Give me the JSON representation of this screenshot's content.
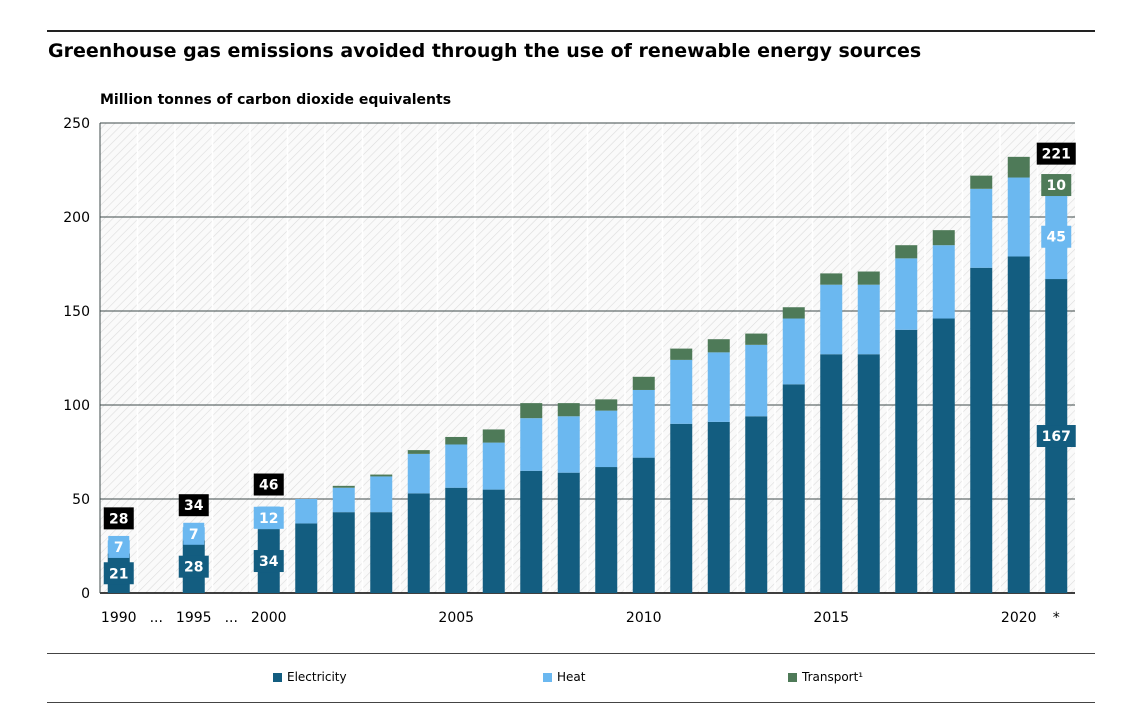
{
  "title": "Greenhouse gas emissions avoided through the use of renewable energy sources",
  "unit_label": "Million tonnes of carbon dioxide equivalents",
  "colors": {
    "electricity": "#135d80",
    "heat": "#6bb8f0",
    "transport": "#4e7a58",
    "total_box": "#000000"
  },
  "legend": [
    {
      "label": "Electricity",
      "color": "#135d80"
    },
    {
      "label": "Heat",
      "color": "#6bb8f0"
    },
    {
      "label": "Transport¹",
      "color": "#4e7a58"
    }
  ],
  "chart_data": {
    "type": "bar",
    "stacked": true,
    "ylim": [
      0,
      250
    ],
    "y_ticks": [
      0,
      50,
      100,
      150,
      200,
      250
    ],
    "grid": true,
    "legend_position": "bottom",
    "categories": [
      "1990",
      "...",
      "1995",
      "...",
      "2000",
      "2001",
      "2002",
      "2003",
      "2004",
      "2005",
      "2006",
      "2007",
      "2008",
      "2009",
      "2010",
      "2011",
      "2012",
      "2013",
      "2014",
      "2015",
      "2016",
      "2017",
      "2018",
      "2019",
      "2020",
      "*"
    ],
    "x_tick_labels": [
      "1990",
      "...",
      "1995",
      "...",
      "2000",
      "",
      "",
      "",
      "",
      "2005",
      "",
      "",
      "",
      "",
      "2010",
      "",
      "",
      "",
      "",
      "2015",
      "",
      "",
      "",
      "",
      "2020",
      "*"
    ],
    "series": [
      {
        "name": "Electricity",
        "values": [
          21,
          null,
          28,
          null,
          34,
          37,
          43,
          43,
          53,
          56,
          55,
          65,
          64,
          67,
          72,
          90,
          91,
          94,
          111,
          127,
          127,
          140,
          146,
          173,
          179,
          167
        ]
      },
      {
        "name": "Heat",
        "values": [
          7,
          null,
          7,
          null,
          12,
          13,
          13,
          19,
          21,
          23,
          25,
          28,
          30,
          30,
          36,
          34,
          37,
          38,
          35,
          37,
          37,
          38,
          39,
          42,
          42,
          45
        ]
      },
      {
        "name": "Transport¹",
        "values": [
          0,
          null,
          0,
          null,
          0,
          0,
          1,
          1,
          2,
          4,
          7,
          8,
          7,
          6,
          7,
          6,
          7,
          6,
          6,
          6,
          7,
          7,
          8,
          7,
          11,
          10
        ]
      }
    ],
    "value_labels": {
      "1990": {
        "electricity": "21",
        "heat": "7",
        "total": "28"
      },
      "1995": {
        "electricity": "28",
        "heat": "7",
        "total": "34"
      },
      "2000": {
        "electricity": "34",
        "heat": "12",
        "total": "46"
      },
      "*": {
        "electricity": "167",
        "heat": "45",
        "transport": "10",
        "total": "221"
      }
    }
  }
}
